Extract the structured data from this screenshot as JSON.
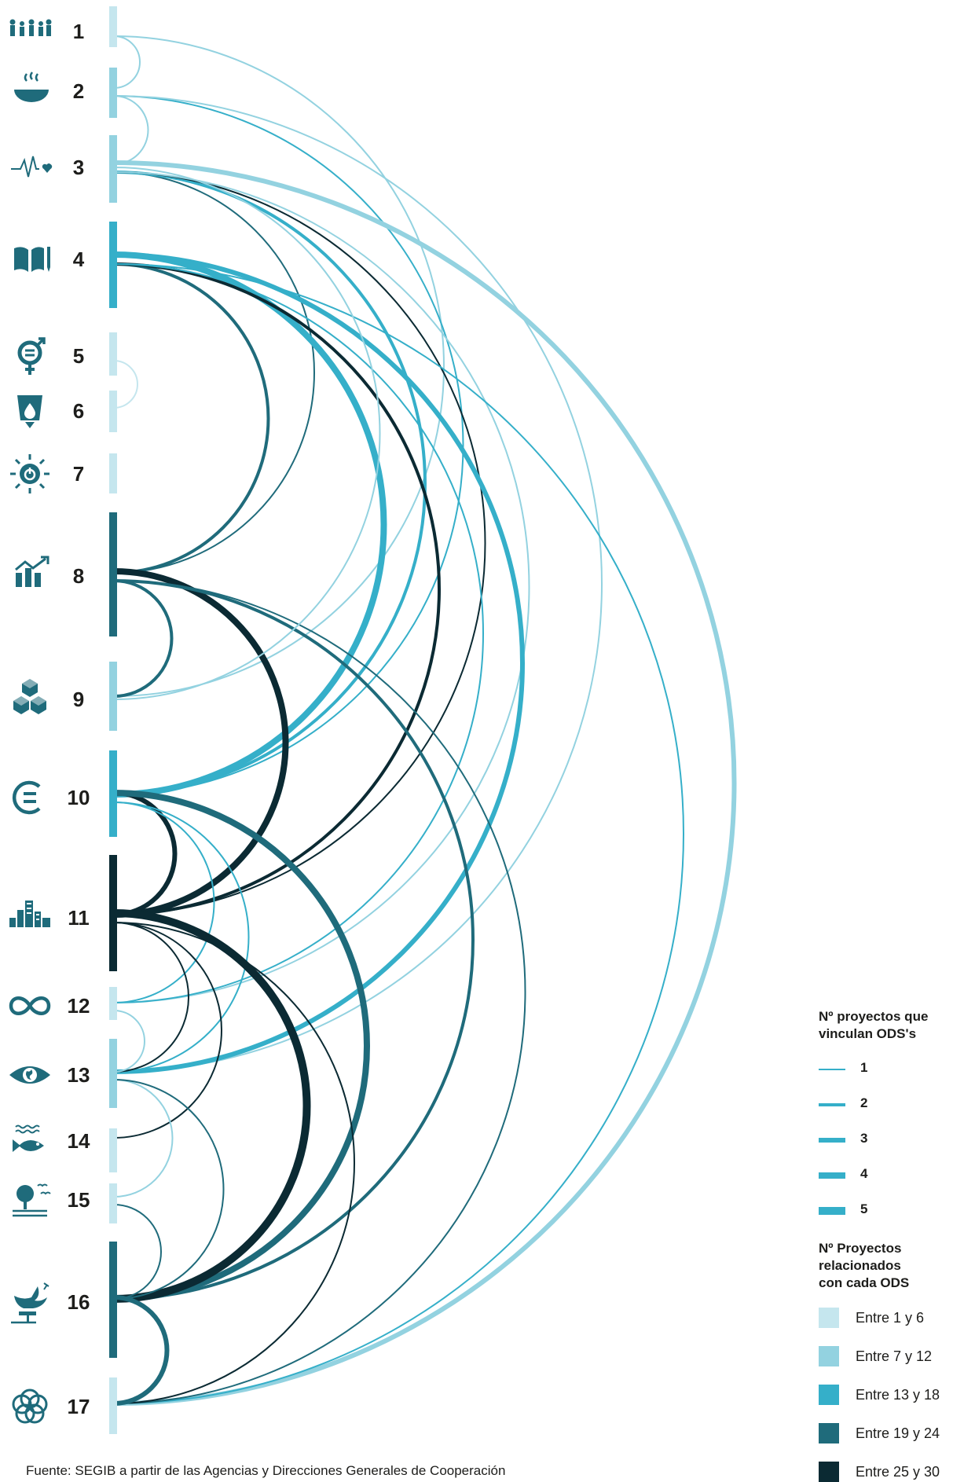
{
  "ods": [
    {
      "n": "1",
      "icon": "family-people-icon",
      "class": 0
    },
    {
      "n": "2",
      "icon": "steaming-bowl-icon",
      "class": 1
    },
    {
      "n": "3",
      "icon": "heartbeat-icon",
      "class": 1
    },
    {
      "n": "4",
      "icon": "open-book-pencil-icon",
      "class": 2
    },
    {
      "n": "5",
      "icon": "gender-equality-icon",
      "class": 0
    },
    {
      "n": "6",
      "icon": "water-glass-icon",
      "class": 0
    },
    {
      "n": "7",
      "icon": "sun-power-icon",
      "class": 0
    },
    {
      "n": "8",
      "icon": "growth-chart-icon",
      "class": 3
    },
    {
      "n": "9",
      "icon": "stacked-cubes-icon",
      "class": 1
    },
    {
      "n": "10",
      "icon": "equality-circle-icon",
      "class": 2
    },
    {
      "n": "11",
      "icon": "city-buildings-icon",
      "class": 4
    },
    {
      "n": "12",
      "icon": "infinity-loop-icon",
      "class": 0
    },
    {
      "n": "13",
      "icon": "eye-globe-icon",
      "class": 1
    },
    {
      "n": "14",
      "icon": "fish-waves-icon",
      "class": 0
    },
    {
      "n": "15",
      "icon": "tree-birds-icon",
      "class": 0
    },
    {
      "n": "16",
      "icon": "dove-gavel-icon",
      "class": 3
    },
    {
      "n": "17",
      "icon": "flower-rings-icon",
      "class": 0
    }
  ],
  "links": [
    [
      "1",
      "2",
      1
    ],
    [
      "1",
      "9",
      1
    ],
    [
      "2",
      "3",
      1
    ],
    [
      "2",
      "10",
      1
    ],
    [
      "2",
      "13",
      1
    ],
    [
      "3",
      "8",
      1
    ],
    [
      "3",
      "10",
      2
    ],
    [
      "3",
      "11",
      1
    ],
    [
      "3",
      "12",
      1
    ],
    [
      "3",
      "17",
      3
    ],
    [
      "4",
      "8",
      2
    ],
    [
      "4",
      "10",
      4
    ],
    [
      "4",
      "11",
      2
    ],
    [
      "4",
      "12",
      1
    ],
    [
      "4",
      "13",
      3
    ],
    [
      "4",
      "17",
      1
    ],
    [
      "5",
      "6",
      1
    ],
    [
      "8",
      "9",
      2
    ],
    [
      "8",
      "11",
      4
    ],
    [
      "8",
      "16",
      2
    ],
    [
      "8",
      "17",
      1
    ],
    [
      "9",
      "3",
      1
    ],
    [
      "10",
      "11",
      3
    ],
    [
      "10",
      "12",
      1
    ],
    [
      "10",
      "13",
      1
    ],
    [
      "10",
      "16",
      4
    ],
    [
      "11",
      "13",
      1
    ],
    [
      "11",
      "14",
      1
    ],
    [
      "11",
      "16",
      5
    ],
    [
      "11",
      "17",
      1
    ],
    [
      "12",
      "13",
      1
    ],
    [
      "13",
      "15",
      1
    ],
    [
      "13",
      "16",
      1
    ],
    [
      "15",
      "16",
      1
    ],
    [
      "16",
      "17",
      3
    ]
  ],
  "colors": {
    "class": [
      "#c5e6ee",
      "#93d2e0",
      "#35afc9",
      "#1f6b7b",
      "#0b2a33"
    ],
    "icon": "#1f6b7b"
  },
  "legend": {
    "lines_title_1": "Nº proyectos que",
    "lines_title_2": "vinculan ODS's",
    "lines": [
      {
        "label": "1",
        "w": 1
      },
      {
        "label": "2",
        "w": 2
      },
      {
        "label": "3",
        "w": 3
      },
      {
        "label": "4",
        "w": 4
      },
      {
        "label": "5",
        "w": 5
      }
    ],
    "boxes_title_1": "Nº Proyectos",
    "boxes_title_2": "relacionados",
    "boxes_title_3": "con cada ODS",
    "boxes": [
      {
        "label": "Entre 1 y 6",
        "color": "#c5e6ee"
      },
      {
        "label": "Entre 7 y 12",
        "color": "#93d2e0"
      },
      {
        "label": "Entre 13 y 18",
        "color": "#35afc9"
      },
      {
        "label": "Entre 19 y 24",
        "color": "#1f6b7b"
      },
      {
        "label": "Entre 25 y 30",
        "color": "#0b2a33"
      }
    ]
  },
  "source": "Fuente: SEGIB a partir de las Agencias y Direcciones Generales de Cooperación"
}
